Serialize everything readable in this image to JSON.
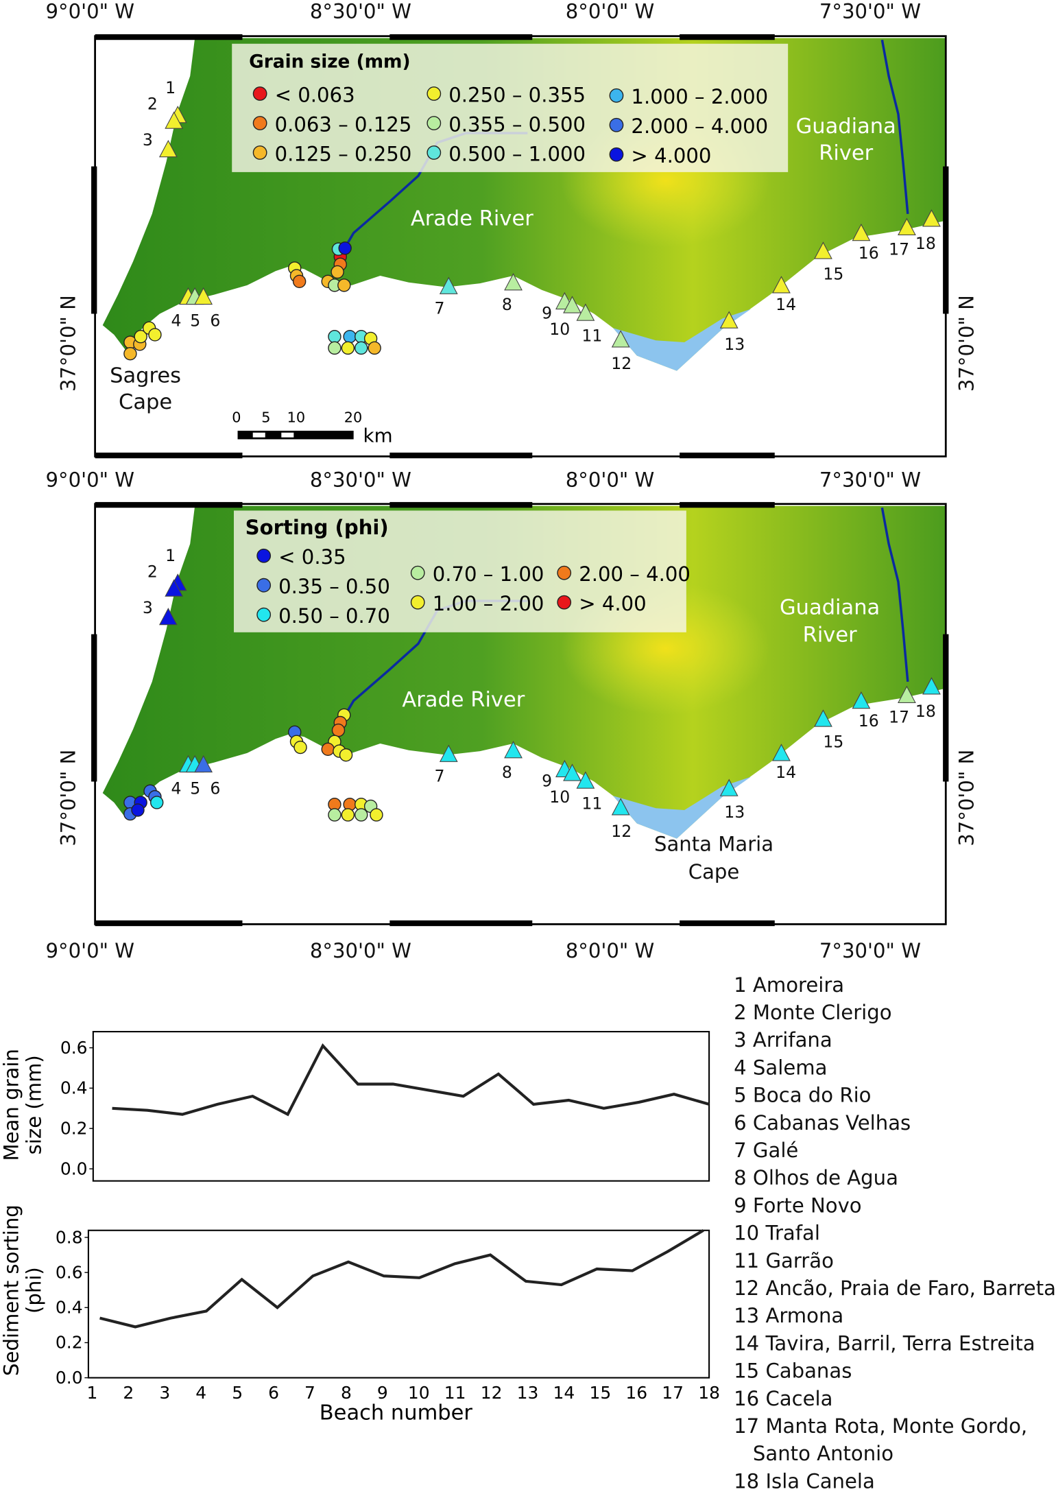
{
  "axes": {
    "lon_labels": [
      "9°0'0\" W",
      "8°30'0\" W",
      "8°0'0\" W",
      "7°30'0\" W"
    ],
    "lat_label": "37°0'0\" N"
  },
  "map1": {
    "legend_title": "Grain size (mm)",
    "legend": [
      {
        "label": "< 0.063",
        "color": "#e8161b"
      },
      {
        "label": "0.063 – 0.125",
        "color": "#f07a1c"
      },
      {
        "label": "0.125 – 0.250",
        "color": "#f5b82a"
      },
      {
        "label": "0.250 – 0.355",
        "color": "#f2ef2e"
      },
      {
        "label": "0.355 – 0.500",
        "color": "#b8eda0"
      },
      {
        "label": "0.500 – 1.000",
        "color": "#5fe6dc"
      },
      {
        "label": "1.000 – 2.000",
        "color": "#3cb5ee"
      },
      {
        "label": "2.000 – 4.000",
        "color": "#3a6ee6"
      },
      {
        "label": "> 4.000",
        "color": "#0a14e0"
      }
    ],
    "labels": {
      "guadiana": "Guadiana River",
      "arade": "Arade River",
      "sagres": "Sagres Cape"
    },
    "scale": {
      "ticks": [
        "0",
        "5",
        "10",
        "20"
      ],
      "unit": "km"
    }
  },
  "map2": {
    "legend_title": "Sorting (phi)",
    "legend": [
      {
        "label": "< 0.35",
        "color": "#0a14e0"
      },
      {
        "label": "0.35 – 0.50",
        "color": "#3a6ee6"
      },
      {
        "label": "0.50 – 0.70",
        "color": "#22e6ee"
      },
      {
        "label": "0.70 – 1.00",
        "color": "#b8eda0"
      },
      {
        "label": "1.00 – 2.00",
        "color": "#f2ef2e"
      },
      {
        "label": "2.00 – 4.00",
        "color": "#f07a1c"
      },
      {
        "label": "> 4.00",
        "color": "#e8161b"
      }
    ],
    "labels": {
      "guadiana": "Guadiana River",
      "arade": "Arade River",
      "santa_maria": "Santa Maria Cape"
    }
  },
  "beach_numbers": [
    "1",
    "2",
    "3",
    "4",
    "5",
    "6",
    "7",
    "8",
    "9",
    "10",
    "11",
    "12",
    "13",
    "14",
    "15",
    "16",
    "17",
    "18"
  ],
  "beaches": [
    "1 Amoreira",
    "2 Monte Clerigo",
    "3 Arrifana",
    "4 Salema",
    "5 Boca do Rio",
    "6 Cabanas Velhas",
    "7 Galé",
    "8 Olhos de Agua",
    "9 Forte Novo",
    "10 Trafal",
    "11 Garrão",
    "12 Ancão, Praia de Faro, Barreta",
    "13 Armona",
    "14 Tavira, Barril, Terra Estreita",
    "15 Cabanas",
    "16 Cacela",
    "17 Manta Rota, Monte Gordo,",
    "   Santo Antonio",
    "18 Isla Canela"
  ],
  "chart_data": [
    {
      "type": "line",
      "xlabel": "",
      "ylabel": "Mean grain size (mm)",
      "x": [
        1,
        2,
        3,
        4,
        5,
        6,
        7,
        8,
        9,
        10,
        11,
        12,
        13,
        14,
        15,
        16,
        17,
        18
      ],
      "values": [
        0.3,
        0.29,
        0.27,
        0.32,
        0.36,
        0.27,
        0.61,
        0.42,
        0.42,
        0.39,
        0.36,
        0.47,
        0.32,
        0.34,
        0.3,
        0.33,
        0.37,
        0.32
      ],
      "yticks": [
        "0.0",
        "0.2",
        "0.4",
        "0.6"
      ],
      "ylim": [
        -0.06,
        0.68
      ],
      "grid": false
    },
    {
      "type": "line",
      "xlabel": "Beach number",
      "ylabel": "Sediment sorting (phi)",
      "x": [
        1,
        2,
        3,
        4,
        5,
        6,
        7,
        8,
        9,
        10,
        11,
        12,
        13,
        14,
        15,
        16,
        17,
        18
      ],
      "values": [
        0.34,
        0.29,
        0.34,
        0.38,
        0.56,
        0.4,
        0.58,
        0.66,
        0.58,
        0.57,
        0.65,
        0.7,
        0.55,
        0.53,
        0.62,
        0.61,
        0.72,
        0.84
      ],
      "yticks": [
        "0.0",
        "0.2",
        "0.4",
        "0.6",
        "0.8"
      ],
      "ylim": [
        0,
        0.84
      ],
      "grid": false
    }
  ]
}
